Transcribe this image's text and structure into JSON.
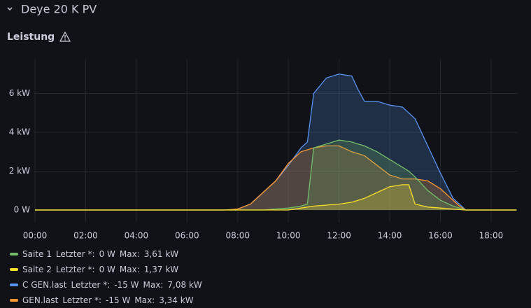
{
  "header": {
    "row_title": "Deye 20 K PV",
    "panel_title": "Leistung"
  },
  "chart_data": {
    "type": "area",
    "x": [
      0,
      7.5,
      8,
      8.5,
      9,
      9.5,
      10,
      10.5,
      10.75,
      11,
      11.5,
      12,
      12.5,
      12.75,
      13,
      13.5,
      14,
      14.5,
      14.75,
      15,
      15.5,
      16,
      16.5,
      16.75,
      17,
      19
    ],
    "xlim": [
      0,
      19.05
    ],
    "xticks": [
      {
        "value": 0,
        "label": "00:00"
      },
      {
        "value": 2,
        "label": "02:00"
      },
      {
        "value": 4,
        "label": "04:00"
      },
      {
        "value": 6,
        "label": "06:00"
      },
      {
        "value": 8,
        "label": "08:00"
      },
      {
        "value": 10,
        "label": "10:00"
      },
      {
        "value": 12,
        "label": "12:00"
      },
      {
        "value": 14,
        "label": "14:00"
      },
      {
        "value": 16,
        "label": "16:00"
      },
      {
        "value": 18,
        "label": "18:00"
      }
    ],
    "ylim": [
      -0.65,
      7.75
    ],
    "yticks": [
      {
        "value": 0,
        "label": "0 W"
      },
      {
        "value": 2,
        "label": "2 kW"
      },
      {
        "value": 4,
        "label": "4 kW"
      },
      {
        "value": 6,
        "label": "6 kW"
      }
    ],
    "grid": true,
    "legend_stat_labels": {
      "last": "Letzter *:",
      "max": "Max:"
    },
    "series": [
      {
        "name": "C GEN.last",
        "color": "#5794f2",
        "last_label": "-15 W",
        "max_label": "7,08 kW",
        "values": [
          0,
          0,
          0.05,
          0.3,
          0.9,
          1.5,
          2.3,
          3.2,
          3.5,
          6.0,
          6.8,
          7.0,
          6.9,
          6.2,
          5.6,
          5.6,
          5.4,
          5.3,
          5.0,
          4.7,
          3.3,
          1.9,
          0.6,
          0.3,
          0,
          0
        ]
      },
      {
        "name": "GEN.last",
        "color": "#ff9830",
        "last_label": "-15 W",
        "max_label": "3,34 kW",
        "values": [
          0,
          0,
          0.05,
          0.3,
          0.9,
          1.5,
          2.4,
          3.0,
          3.1,
          3.2,
          3.3,
          3.3,
          3.0,
          2.9,
          2.8,
          2.3,
          1.8,
          1.6,
          1.6,
          1.6,
          1.5,
          1.1,
          0.5,
          0.2,
          0,
          0
        ]
      },
      {
        "name": "Saite 1",
        "color": "#73bf69",
        "last_label": "0 W",
        "max_label": "3,61 kW",
        "values": [
          0,
          0,
          0,
          0,
          0,
          0.05,
          0.1,
          0.2,
          0.3,
          3.2,
          3.4,
          3.6,
          3.5,
          3.4,
          3.3,
          3.0,
          2.6,
          2.2,
          2.0,
          1.7,
          1.0,
          0.5,
          0.2,
          0.1,
          0,
          0
        ]
      },
      {
        "name": "Saite 2",
        "color": "#fade2a",
        "last_label": "0 W",
        "max_label": "1,37 kW",
        "values": [
          0,
          0,
          0,
          0,
          0,
          0,
          0,
          0.1,
          0.15,
          0.2,
          0.25,
          0.3,
          0.4,
          0.5,
          0.6,
          0.9,
          1.2,
          1.3,
          1.3,
          0.3,
          0.15,
          0.1,
          0.05,
          0.02,
          0,
          0
        ]
      }
    ],
    "legend_order": [
      2,
      3,
      0,
      1
    ]
  }
}
